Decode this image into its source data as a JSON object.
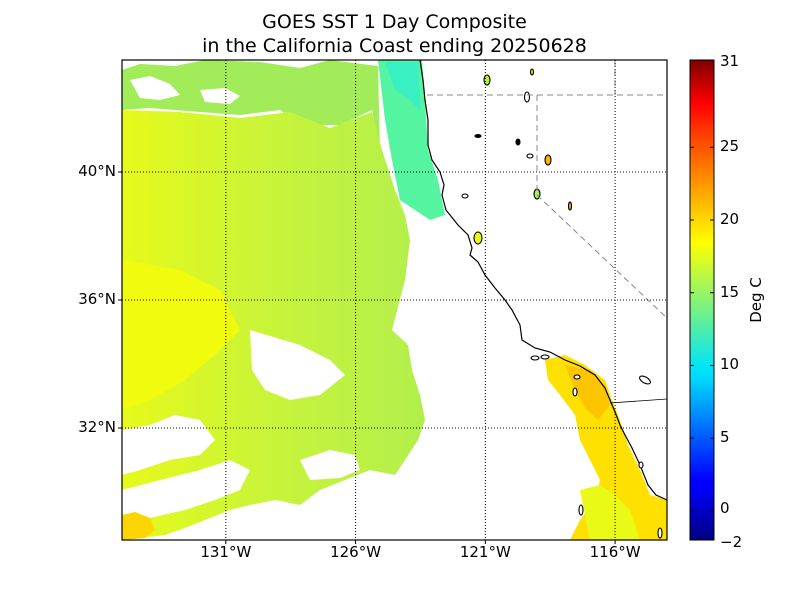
{
  "title_line1": "GOES SST 1 Day Composite",
  "title_line2": "in the California Coast ending 20250628",
  "map_extent": {
    "lon_min": -135.0,
    "lon_max": -114.0,
    "lat_min": 28.5,
    "lat_max": 43.5
  },
  "lat_ticks": [
    {
      "value": 40,
      "label": "40°N"
    },
    {
      "value": 36,
      "label": "36°N"
    },
    {
      "value": 32,
      "label": "32°N"
    }
  ],
  "lon_ticks": [
    {
      "value": -131,
      "label": "131°W"
    },
    {
      "value": -126,
      "label": "126°W"
    },
    {
      "value": -121,
      "label": "121°W"
    },
    {
      "value": -116,
      "label": "116°W"
    }
  ],
  "colorbar": {
    "label": "Deg C",
    "min": -2,
    "max": 31,
    "ticks": [
      {
        "value": 31,
        "label": "31"
      },
      {
        "value": 25,
        "label": "25"
      },
      {
        "value": 20,
        "label": "20"
      },
      {
        "value": 15,
        "label": "15"
      },
      {
        "value": 10,
        "label": "10"
      },
      {
        "value": 5,
        "label": "5"
      },
      {
        "value": 0,
        "label": "0"
      },
      {
        "value": -2,
        "label": "−2"
      }
    ],
    "colormap": "jet"
  },
  "colors": {
    "land": "#ffffff",
    "coastline": "#000000",
    "state_border": "#888888",
    "grid": "#000000"
  }
}
